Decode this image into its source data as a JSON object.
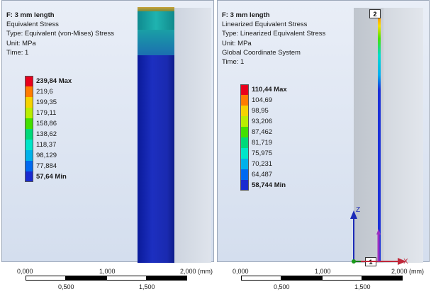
{
  "left": {
    "info": {
      "title": "F: 3 mm length",
      "line1": "Equivalent Stress",
      "line2": "Type: Equivalent (von-Mises) Stress",
      "line3": "Unit: MPa",
      "line4": "Time: 1"
    },
    "legend": [
      {
        "label": "239,84 Max",
        "color": "#e8001c",
        "bold": true
      },
      {
        "label": "219,6",
        "color": "#ff7c00",
        "bold": false
      },
      {
        "label": "199,35",
        "color": "#f5d300",
        "bold": false
      },
      {
        "label": "179,11",
        "color": "#b9ee00",
        "bold": false
      },
      {
        "label": "158,86",
        "color": "#43e000",
        "bold": false
      },
      {
        "label": "138,62",
        "color": "#00d97a",
        "bold": false
      },
      {
        "label": "118,37",
        "color": "#00e5c9",
        "bold": false
      },
      {
        "label": "98,129",
        "color": "#00b1ea",
        "bold": false
      },
      {
        "label": "77,884",
        "color": "#0069f0",
        "bold": false
      },
      {
        "label": "57,64 Min",
        "color": "#1a2bd0",
        "bold": true
      }
    ],
    "scale": {
      "top_labels": [
        "0,000",
        "1,000",
        "2,000 (mm)"
      ],
      "bottom_labels": [
        "0,500",
        "1,500"
      ]
    }
  },
  "right": {
    "info": {
      "title": "F: 3 mm length",
      "line1": "Linearized Equivalent Stress",
      "line2": "Type: Linearized Equivalent Stress",
      "line3": "Unit: MPa",
      "line4": "Global Coordinate System",
      "line5": "Time: 1"
    },
    "legend": [
      {
        "label": "110,44 Max",
        "color": "#e8001c",
        "bold": true
      },
      {
        "label": "104,69",
        "color": "#ff7c00",
        "bold": false
      },
      {
        "label": "98,95",
        "color": "#f5d300",
        "bold": false
      },
      {
        "label": "93,206",
        "color": "#b9ee00",
        "bold": false
      },
      {
        "label": "87,462",
        "color": "#43e000",
        "bold": false
      },
      {
        "label": "81,719",
        "color": "#00d97a",
        "bold": false
      },
      {
        "label": "75,975",
        "color": "#00e5c9",
        "bold": false
      },
      {
        "label": "70,231",
        "color": "#00b1ea",
        "bold": false
      },
      {
        "label": "64,487",
        "color": "#0069f0",
        "bold": false
      },
      {
        "label": "58,744 Min",
        "color": "#1a2bd0",
        "bold": true
      }
    ],
    "path_tags": {
      "start": "1",
      "end": "2"
    },
    "axes": {
      "z": "Z",
      "x": "X"
    },
    "scale": {
      "top_labels": [
        "0,000",
        "1,000",
        "2,000 (mm)"
      ],
      "bottom_labels": [
        "0,500",
        "1,500"
      ]
    }
  }
}
